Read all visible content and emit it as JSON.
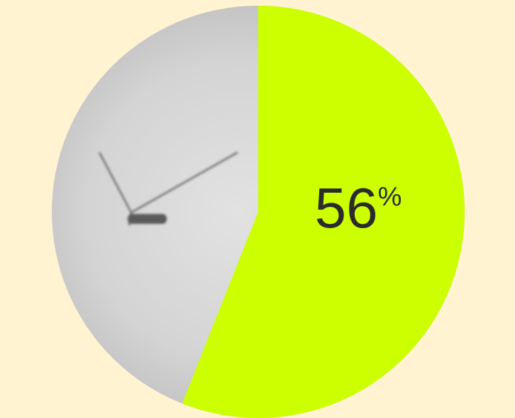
{
  "chart_data": {
    "type": "pie",
    "values": [
      56
    ],
    "value_labels": [
      "56%"
    ],
    "color": "#ccff00"
  }
}
